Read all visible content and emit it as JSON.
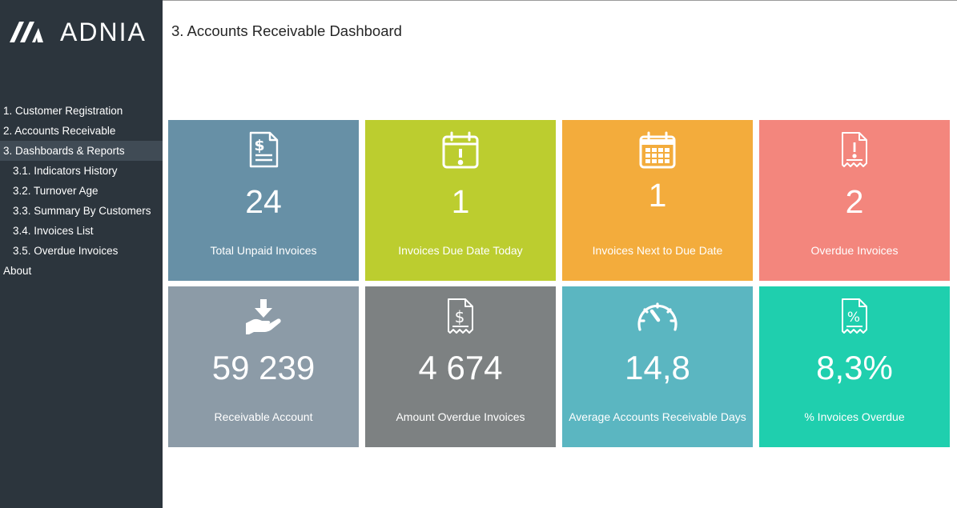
{
  "app": {
    "logo_text": "ADNIA"
  },
  "page": {
    "title": "3. Accounts Receivable Dashboard"
  },
  "sidebar": {
    "items": [
      {
        "label": "1. Customer Registration"
      },
      {
        "label": "2. Accounts Receivable"
      },
      {
        "label": "3. Dashboards & Reports"
      },
      {
        "label": "3.1. Indicators History"
      },
      {
        "label": "3.2. Turnover Age"
      },
      {
        "label": "3.3. Summary By Customers"
      },
      {
        "label": "3.4. Invoices List"
      },
      {
        "label": "3.5. Overdue Invoices"
      },
      {
        "label": "About"
      }
    ]
  },
  "tiles": [
    {
      "icon": "invoice-dollar-icon",
      "value": "24",
      "label": "Total Unpaid Invoices",
      "color": "#6790a6"
    },
    {
      "icon": "calendar-alert-icon",
      "value": "1",
      "label": "Invoices Due Date Today",
      "color": "#bccd2f"
    },
    {
      "icon": "calendar-icon",
      "value": "1",
      "label": "Invoices Next to Due Date",
      "color": "#f3ac3c"
    },
    {
      "icon": "receipt-alert-icon",
      "value": "2",
      "label": "Overdue Invoices",
      "color": "#f3867d"
    },
    {
      "icon": "hand-receive-icon",
      "value": "59 239",
      "label": "Receivable Account",
      "color": "#8c9ba7"
    },
    {
      "icon": "receipt-dollar-icon",
      "value": "4 674",
      "label": "Amount Overdue Invoices",
      "color": "#7d8182"
    },
    {
      "icon": "speedometer-icon",
      "value": "14,8",
      "label": "Average Accounts Receivable Days",
      "color": "#5bb6c1"
    },
    {
      "icon": "receipt-percent-icon",
      "value": "8,3%",
      "label": "% Invoices Overdue",
      "color": "#1fcfae"
    }
  ]
}
